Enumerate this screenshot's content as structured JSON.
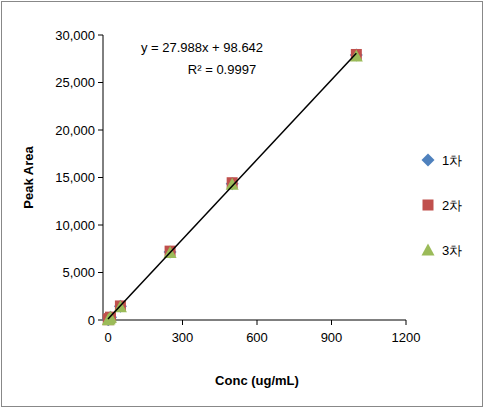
{
  "chart_data": {
    "type": "scatter",
    "x_label": "Conc (ug/mL)",
    "y_label": "Peak Area",
    "annotations": [
      "y = 27.988x + 98.642",
      "R² = 0.9997"
    ],
    "x": [
      1,
      5,
      10,
      50,
      250,
      500,
      1000
    ],
    "series": [
      {
        "name": "1차",
        "color": "#4f81bd",
        "marker": "diamond",
        "values": [
          30,
          140,
          290,
          1450,
          7150,
          14350,
          27900
        ]
      },
      {
        "name": "2차",
        "color": "#c0504d",
        "marker": "square",
        "values": [
          35,
          145,
          300,
          1480,
          7250,
          14450,
          27950
        ]
      },
      {
        "name": "3차",
        "color": "#9bbb59",
        "marker": "triangle",
        "values": [
          25,
          135,
          280,
          1400,
          7100,
          14300,
          27800
        ]
      }
    ],
    "trendline": {
      "x": [
        0,
        1000
      ],
      "slope": 27.988,
      "intercept": 98.642
    },
    "xlim": [
      0,
      1200
    ],
    "xticks": [
      0,
      300,
      600,
      900,
      1200
    ],
    "ylim": [
      0,
      30000
    ],
    "yticks": [
      0,
      {
        "value": 5000,
        "label": "5,000"
      },
      {
        "value": 10000,
        "label": "10,000"
      },
      {
        "value": 15000,
        "label": "15,000"
      },
      {
        "value": 20000,
        "label": "20,000"
      },
      {
        "value": 25000,
        "label": "25,000"
      },
      {
        "value": 30000,
        "label": "30,000"
      }
    ],
    "grid": false,
    "legend": "right"
  }
}
